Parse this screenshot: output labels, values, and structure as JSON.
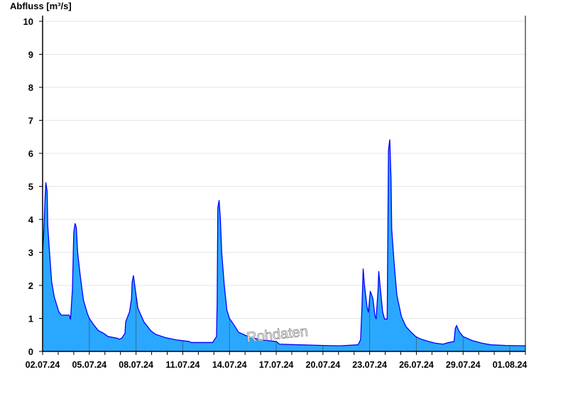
{
  "chart_data": {
    "type": "area",
    "title": "",
    "ylabel": "Abfluss [m³/s]",
    "xlabel": "",
    "ylim": [
      0,
      10
    ],
    "xlim": [
      "2024-07-02T00:00",
      "2024-08-02T00:00"
    ],
    "yticks": [
      "0",
      "1",
      "2",
      "3",
      "4",
      "5",
      "6",
      "7",
      "8",
      "9",
      "10"
    ],
    "xtick_labels": [
      "02.07.24",
      "05.07.24",
      "08.07.24",
      "11.07.24",
      "14.07.24",
      "17.07.24",
      "20.07.24",
      "23.07.24",
      "26.07.24",
      "29.07.24",
      "01.08.24"
    ],
    "xtick_dates": [
      "2024-07-02",
      "2024-07-05",
      "2024-07-08",
      "2024-07-11",
      "2024-07-14",
      "2024-07-17",
      "2024-07-20",
      "2024-07-23",
      "2024-07-26",
      "2024-07-29",
      "2024-08-01"
    ],
    "grid": "horizontal",
    "watermark": "Rohdaten",
    "colors": {
      "fill": "#2aa8ff",
      "line": "#0000ff",
      "grid": "#e6e6e6",
      "axis": "#000000"
    },
    "series": [
      {
        "x": [
          "2024-07-02T00:00",
          "2024-07-02T02:00",
          "2024-07-02T04:00",
          "2024-07-02T05:00",
          "2024-07-02T07:00",
          "2024-07-02T08:00",
          "2024-07-02T10:00",
          "2024-07-02T14:00",
          "2024-07-02T18:00",
          "2024-07-03T01:00",
          "2024-07-03T05:00",
          "2024-07-03T17:00",
          "2024-07-03T19:00",
          "2024-07-03T22:00",
          "2024-07-04T00:00",
          "2024-07-04T02:00",
          "2024-07-04T04:00",
          "2024-07-04T06:00",
          "2024-07-04T10:00",
          "2024-07-04T15:00",
          "2024-07-04T21:00",
          "2024-07-05T00:00",
          "2024-07-05T07:00",
          "2024-07-05T14:00",
          "2024-07-05T22:00",
          "2024-07-06T05:00",
          "2024-07-06T19:00",
          "2024-07-06T22:00",
          "2024-07-07T02:00",
          "2024-07-07T07:00",
          "2024-07-07T08:00",
          "2024-07-07T14:00",
          "2024-07-07T17:00",
          "2024-07-07T18:00",
          "2024-07-07T20:00",
          "2024-07-07T23:00",
          "2024-07-08T03:00",
          "2024-07-08T12:00",
          "2024-07-08T23:00",
          "2024-07-09T06:00",
          "2024-07-09T21:00",
          "2024-07-10T14:00",
          "2024-07-11T10:00",
          "2024-07-11T13:00",
          "2024-07-12T22:00",
          "2024-07-13T04:00",
          "2024-07-13T05:00",
          "2024-07-13T06:00",
          "2024-07-13T08:00",
          "2024-07-13T10:00",
          "2024-07-13T12:00",
          "2024-07-13T16:00",
          "2024-07-13T20:00",
          "2024-07-14T00:00",
          "2024-07-14T07:00",
          "2024-07-14T14:00",
          "2024-07-15T05:00",
          "2024-07-16T00:00",
          "2024-07-17T00:00",
          "2024-07-17T05:00",
          "2024-07-18T12:00",
          "2024-07-20T00:00",
          "2024-07-21T02:00",
          "2024-07-22T06:00",
          "2024-07-22T10:00",
          "2024-07-22T12:00",
          "2024-07-22T14:00",
          "2024-07-22T16:00",
          "2024-07-22T20:00",
          "2024-07-22T22:00",
          "2024-07-23T01:00",
          "2024-07-23T05:00",
          "2024-07-23T08:00",
          "2024-07-23T10:00",
          "2024-07-23T13:00",
          "2024-07-23T14:00",
          "2024-07-23T16:00",
          "2024-07-23T20:00",
          "2024-07-23T23:00",
          "2024-07-24T03:00",
          "2024-07-24T04:00",
          "2024-07-24T05:00",
          "2024-07-24T07:00",
          "2024-07-24T09:00",
          "2024-07-24T10:00",
          "2024-07-24T14:00",
          "2024-07-24T18:00",
          "2024-07-25T01:00",
          "2024-07-25T08:00",
          "2024-07-25T16:00",
          "2024-07-25T23:00",
          "2024-07-26T06:00",
          "2024-07-26T19:00",
          "2024-07-27T05:00",
          "2024-07-27T17:00",
          "2024-07-28T02:00",
          "2024-07-28T10:00",
          "2024-07-28T12:00",
          "2024-07-28T14:00",
          "2024-07-28T18:00",
          "2024-07-29T00:00",
          "2024-07-29T14:00",
          "2024-07-30T05:00",
          "2024-07-30T19:00",
          "2024-07-31T18:00",
          "2024-08-02T00:00"
        ],
        "y": [
          3.0,
          3.7,
          4.75,
          5.12,
          4.85,
          3.8,
          3.2,
          2.1,
          1.65,
          1.2,
          1.1,
          1.1,
          0.97,
          1.9,
          3.6,
          3.88,
          3.75,
          3.0,
          2.3,
          1.55,
          1.15,
          1.0,
          0.8,
          0.63,
          0.55,
          0.45,
          0.4,
          0.37,
          0.4,
          0.55,
          0.9,
          1.2,
          1.6,
          2.1,
          2.3,
          1.85,
          1.3,
          0.9,
          0.62,
          0.52,
          0.42,
          0.35,
          0.3,
          0.27,
          0.27,
          0.45,
          1.5,
          4.35,
          4.58,
          4.0,
          3.0,
          2.0,
          1.25,
          1.0,
          0.8,
          0.58,
          0.45,
          0.35,
          0.3,
          0.22,
          0.2,
          0.18,
          0.17,
          0.2,
          0.35,
          1.27,
          2.51,
          2.0,
          1.35,
          1.18,
          1.83,
          1.6,
          1.1,
          0.98,
          1.9,
          2.43,
          2.0,
          1.2,
          0.98,
          0.98,
          3.48,
          6.1,
          6.42,
          5.2,
          3.7,
          2.6,
          1.7,
          1.05,
          0.75,
          0.58,
          0.45,
          0.38,
          0.3,
          0.25,
          0.22,
          0.27,
          0.3,
          0.7,
          0.78,
          0.6,
          0.45,
          0.33,
          0.25,
          0.2,
          0.18,
          0.17
        ]
      }
    ]
  }
}
